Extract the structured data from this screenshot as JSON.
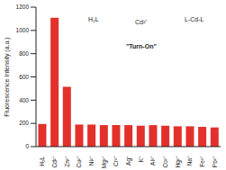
{
  "chart_data": {
    "type": "bar",
    "y_label": "Fluorescence Intensity (a.u.)",
    "categories": [
      "H₂L",
      "Cd²⁺",
      "Zn²⁺",
      "Cu²⁺",
      "Ni²⁺",
      "Mg²⁺",
      "Cr³⁺",
      "Ag⁺",
      "K⁺",
      "Al³⁺",
      "Co²⁺",
      "Hg²⁺",
      "Na⁺",
      "Fe³⁺",
      "Pb²⁺"
    ],
    "values": [
      195,
      1110,
      515,
      190,
      190,
      185,
      185,
      185,
      180,
      185,
      180,
      175,
      175,
      170,
      165
    ],
    "color": "#e3302b",
    "ylim": [
      0,
      1200
    ],
    "yticks": [
      0,
      200,
      400,
      600,
      800,
      1000,
      1200
    ],
    "grid": false,
    "annotations": [
      "H₂L",
      "Cd²⁺",
      "\"Turn-On\"",
      "L-Cd-L"
    ]
  }
}
